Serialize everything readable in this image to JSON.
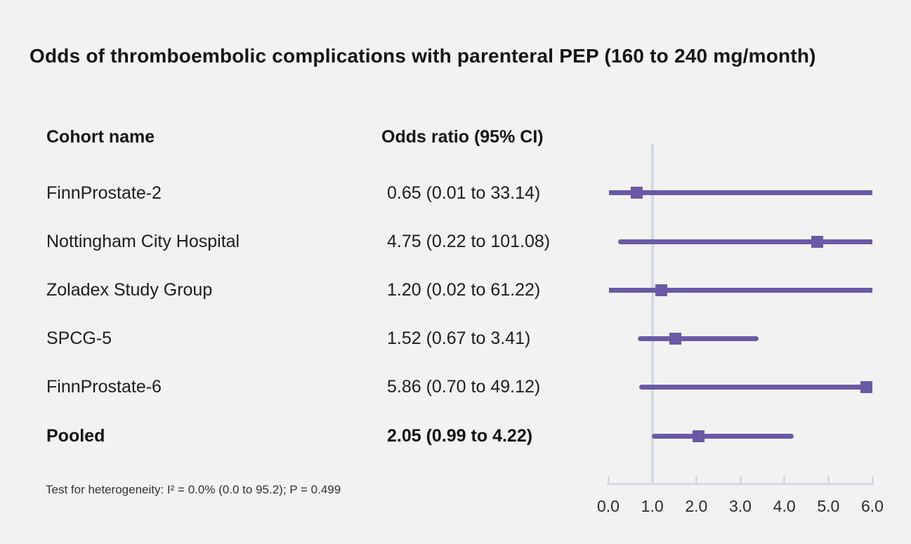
{
  "title": "Odds of thromboembolic complications with parenteral PEP (160 to 240 mg/month)",
  "columns": {
    "cohort": "Cohort name",
    "odds": "Odds ratio (95% CI)"
  },
  "footnote": "Test for heterogeneity: I² = 0.0% (0.0 to 95.2); P = 0.499",
  "colors": {
    "series": "#6a5aa6",
    "axis": "#d5dae2",
    "background": "#f2f2f2",
    "text": "#1d1d1d"
  },
  "chart_data": {
    "type": "forest",
    "title": "Odds of thromboembolic complications with parenteral PEP (160 to 240 mg/month)",
    "xlabel": "",
    "ylabel": "",
    "xlim": [
      0.0,
      6.0
    ],
    "x_ticks": [
      "0.0",
      "1.0",
      "2.0",
      "3.0",
      "4.0",
      "5.0",
      "6.0"
    ],
    "x_tick_values": [
      0,
      1,
      2,
      3,
      4,
      5,
      6
    ],
    "reference_line_x": 1.0,
    "grid": false,
    "legend": false,
    "rows": [
      {
        "label": "FinnProstate-2",
        "or": 0.65,
        "ci_low": 0.01,
        "ci_high": 33.14,
        "text": "0.65 (0.01 to 33.14)",
        "bold": false
      },
      {
        "label": "Nottingham City Hospital",
        "or": 4.75,
        "ci_low": 0.22,
        "ci_high": 101.08,
        "text": "4.75 (0.22 to 101.08)",
        "bold": false
      },
      {
        "label": "Zoladex Study Group",
        "or": 1.2,
        "ci_low": 0.02,
        "ci_high": 61.22,
        "text": "1.20 (0.02 to 61.22)",
        "bold": false
      },
      {
        "label": "SPCG-5",
        "or": 1.52,
        "ci_low": 0.67,
        "ci_high": 3.41,
        "text": "1.52 (0.67 to 3.41)",
        "bold": false
      },
      {
        "label": "FinnProstate-6",
        "or": 5.86,
        "ci_low": 0.7,
        "ci_high": 49.12,
        "text": "5.86 (0.70 to 49.12)",
        "bold": false
      },
      {
        "label": "Pooled",
        "or": 2.05,
        "ci_low": 0.99,
        "ci_high": 4.22,
        "text": "2.05 (0.99 to 4.22)",
        "bold": true
      }
    ]
  }
}
